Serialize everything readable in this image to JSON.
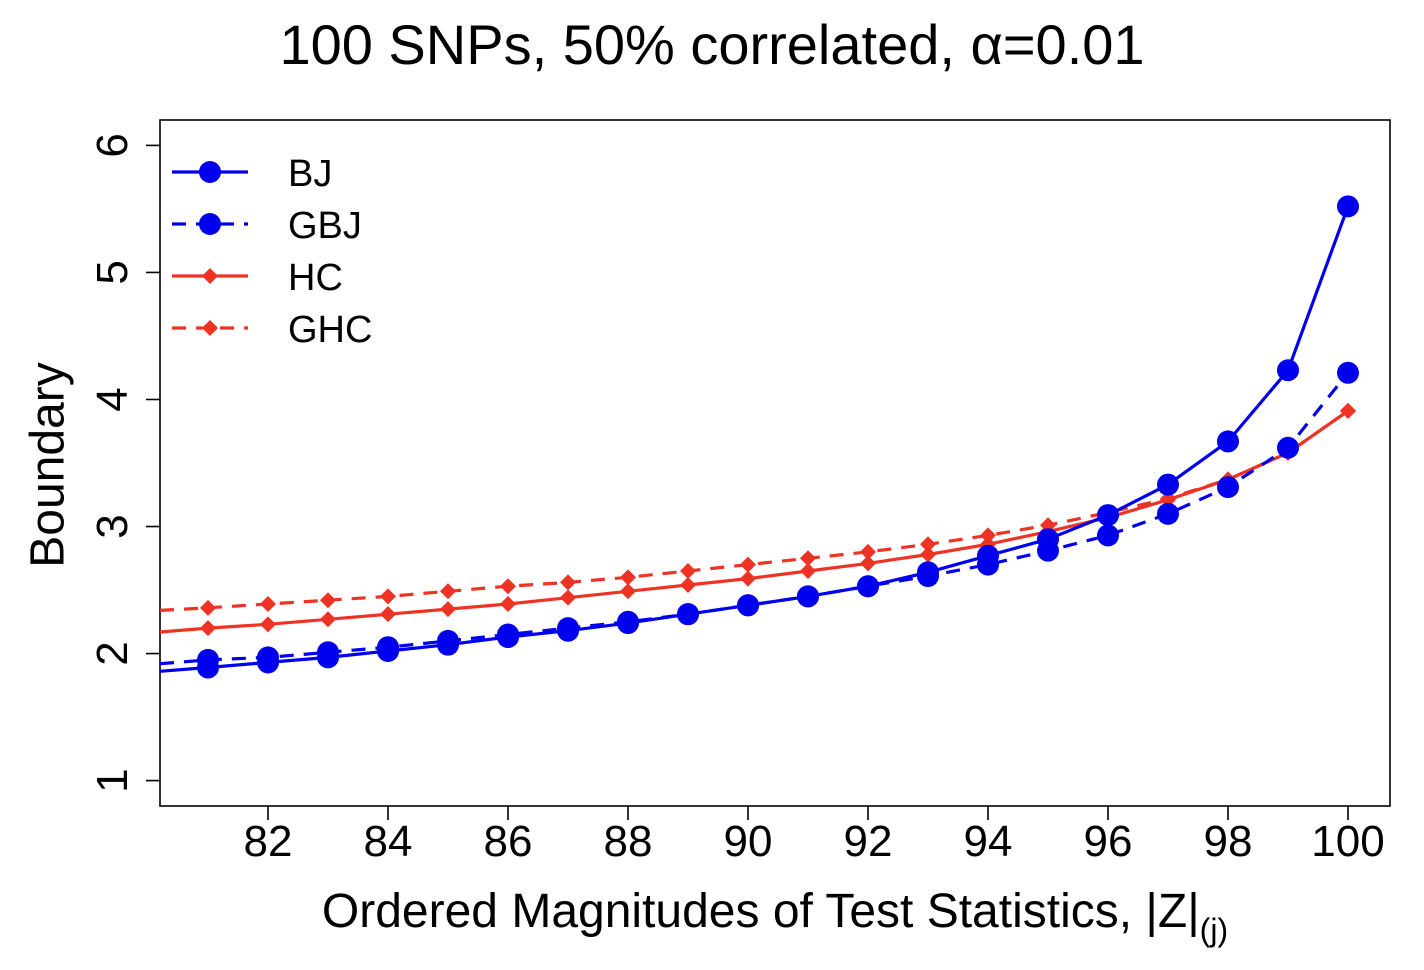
{
  "chart_data": {
    "type": "line",
    "title": "100 SNPs, 50% correlated, α=0.01",
    "xlabel_main": "Ordered Magnitudes of Test Statistics, |Z|",
    "xlabel_sub": "(j)",
    "ylabel": "Boundary",
    "xlim": [
      80.2,
      100.7
    ],
    "ylim": [
      0.8,
      6.2
    ],
    "xticks": [
      82,
      84,
      86,
      88,
      90,
      92,
      94,
      96,
      98,
      100
    ],
    "yticks": [
      1,
      2,
      3,
      4,
      5,
      6
    ],
    "x": [
      81,
      82,
      83,
      84,
      85,
      86,
      87,
      88,
      89,
      90,
      91,
      92,
      93,
      94,
      95,
      96,
      97,
      98,
      99,
      100
    ],
    "line_start_x": 80.2,
    "grid": false,
    "legend_position": "top-left",
    "series": [
      {
        "name": "BJ",
        "color": "#0000ee",
        "line_style": "solid",
        "marker": "circle",
        "start_value": 1.86,
        "values": [
          1.89,
          1.93,
          1.97,
          2.02,
          2.07,
          2.13,
          2.18,
          2.24,
          2.31,
          2.38,
          2.45,
          2.53,
          2.64,
          2.77,
          2.9,
          3.09,
          3.33,
          3.67,
          4.23,
          5.52
        ]
      },
      {
        "name": "GBJ",
        "color": "#0000ee",
        "line_style": "dashed",
        "marker": "circle",
        "start_value": 1.92,
        "values": [
          1.95,
          1.97,
          2.01,
          2.05,
          2.1,
          2.15,
          2.2,
          2.25,
          2.31,
          2.38,
          2.45,
          2.53,
          2.61,
          2.7,
          2.81,
          2.93,
          3.1,
          3.31,
          3.62,
          4.21
        ]
      },
      {
        "name": "HC",
        "color": "#ee3325",
        "line_style": "solid",
        "marker": "diamond",
        "start_value": 2.17,
        "values": [
          2.2,
          2.23,
          2.27,
          2.31,
          2.35,
          2.39,
          2.44,
          2.49,
          2.54,
          2.59,
          2.65,
          2.71,
          2.78,
          2.86,
          2.96,
          3.07,
          3.21,
          3.37,
          3.58,
          3.91
        ]
      },
      {
        "name": "GHC",
        "color": "#ee3325",
        "line_style": "dashed",
        "marker": "diamond",
        "start_value": 2.34,
        "values": [
          2.36,
          2.39,
          2.42,
          2.45,
          2.49,
          2.53,
          2.56,
          2.6,
          2.65,
          2.7,
          2.75,
          2.8,
          2.86,
          2.93,
          3.01,
          3.11,
          3.22,
          3.37,
          3.58,
          3.91
        ]
      }
    ]
  }
}
